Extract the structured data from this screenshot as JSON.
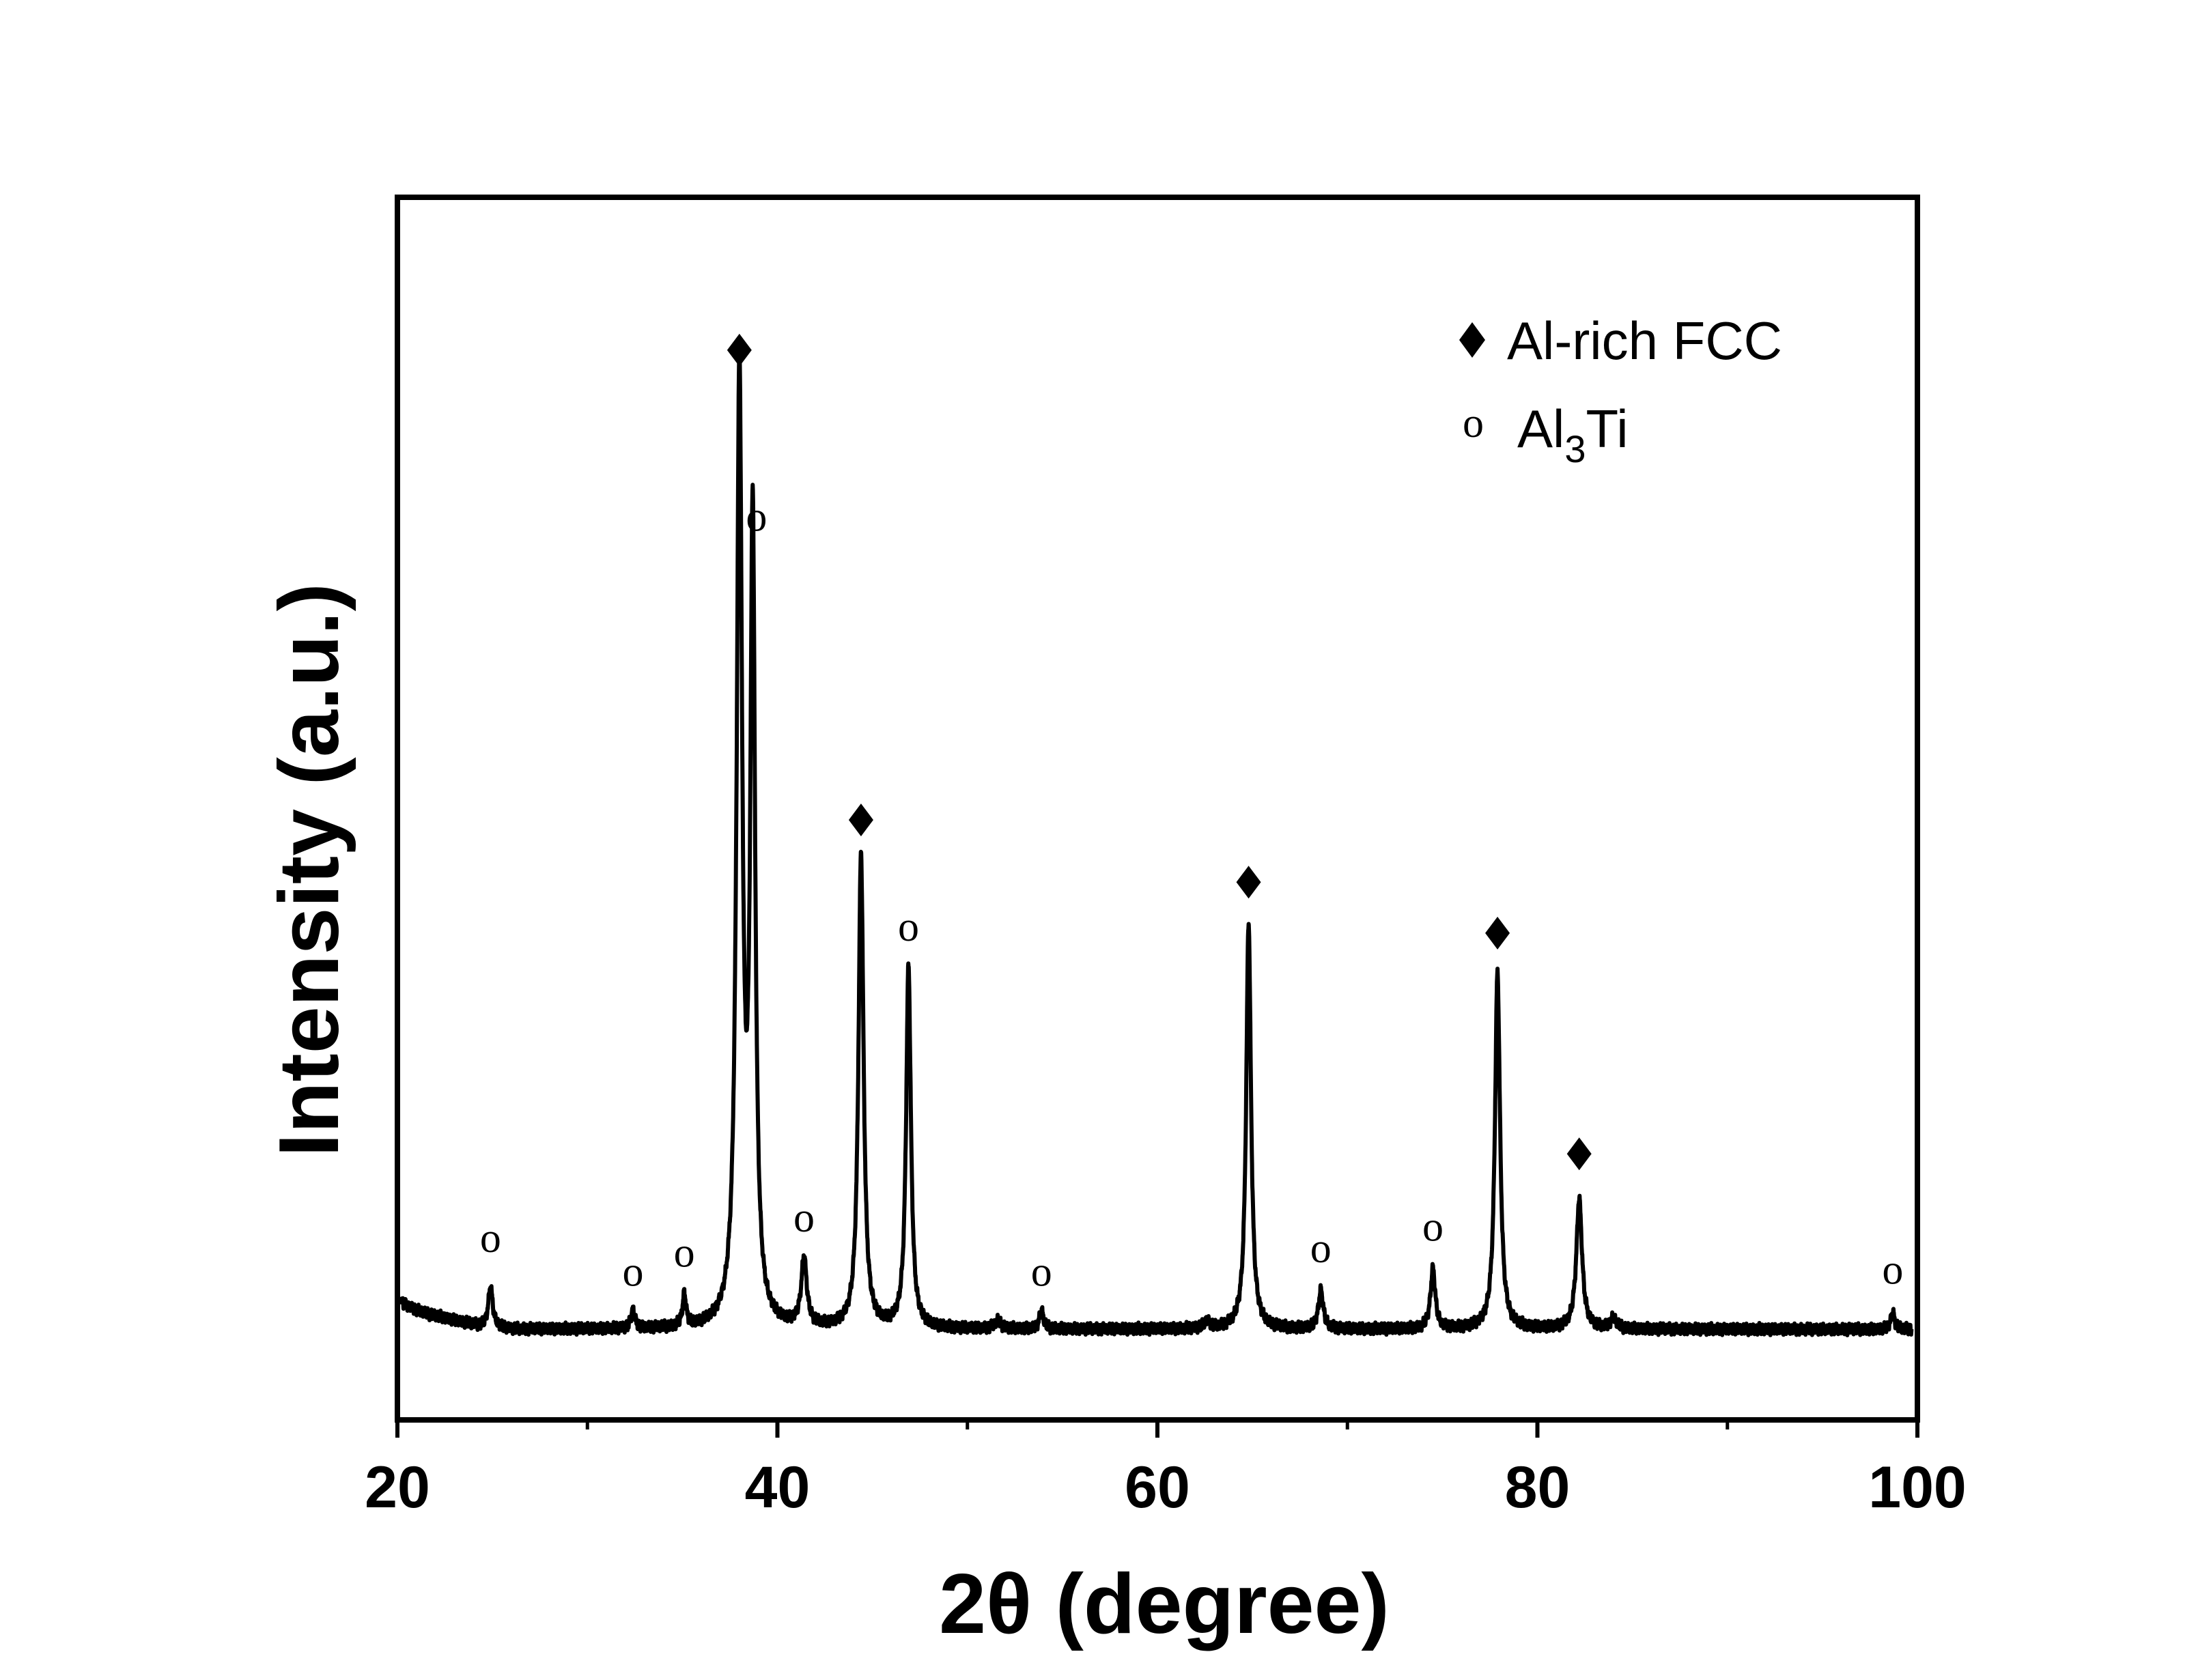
{
  "chart_data": {
    "type": "line",
    "xlabel": "2θ (degree)",
    "ylabel": "Intensity (a.u.)",
    "xlim": [
      20,
      100
    ],
    "ylim": [
      -8,
      100
    ],
    "x_ticks": [
      20,
      40,
      60,
      80,
      100
    ],
    "x_minor_ticks": [
      30,
      50,
      70,
      90
    ],
    "y_ticks_shown": false,
    "grid": false,
    "legend_position": "top-right",
    "legend": [
      {
        "symbol": "diamond",
        "label_main": "Al-rich FCC",
        "label_sub": ""
      },
      {
        "symbol": "circle-o",
        "label_main": "Al",
        "label_sub": "3",
        "label_tail": "Ti"
      }
    ],
    "baseline": 0,
    "low_angle_rise": [
      [
        20.2,
        2.4
      ],
      [
        20.5,
        2.1
      ],
      [
        21.0,
        1.7
      ],
      [
        21.5,
        1.4
      ],
      [
        22.0,
        1.2
      ],
      [
        22.5,
        1.0
      ],
      [
        23.0,
        0.8
      ],
      [
        23.5,
        0.6
      ],
      [
        24.0,
        0.4
      ],
      [
        24.5,
        0.2
      ],
      [
        25.5,
        0.1
      ],
      [
        26.0,
        0.0
      ]
    ],
    "peaks": [
      {
        "x": 24.9,
        "y": 3.6,
        "w": 0.14,
        "phase": "Al3Ti"
      },
      {
        "x": 32.4,
        "y": 1.6,
        "w": 0.12,
        "phase": "Al3Ti"
      },
      {
        "x": 35.1,
        "y": 2.8,
        "w": 0.11,
        "phase": "Al3Ti"
      },
      {
        "x": 38.0,
        "y": 83.5,
        "w": 0.17,
        "phase": "Al-rich FCC"
      },
      {
        "x": 38.7,
        "y": 70.0,
        "w": 0.15,
        "phase": "Al3Ti"
      },
      {
        "x": 41.4,
        "y": 6.0,
        "w": 0.17,
        "phase": "Al3Ti"
      },
      {
        "x": 44.4,
        "y": 42.0,
        "w": 0.16,
        "phase": "Al-rich FCC"
      },
      {
        "x": 46.9,
        "y": 32.0,
        "w": 0.15,
        "phase": "Al3Ti"
      },
      {
        "x": 51.6,
        "y": 0.7,
        "w": 0.2,
        "phase": ""
      },
      {
        "x": 53.9,
        "y": 1.6,
        "w": 0.13,
        "phase": "Al3Ti"
      },
      {
        "x": 62.6,
        "y": 0.6,
        "w": 0.2,
        "phase": ""
      },
      {
        "x": 64.8,
        "y": 36.0,
        "w": 0.15,
        "phase": "Al-rich FCC"
      },
      {
        "x": 68.6,
        "y": 3.4,
        "w": 0.15,
        "phase": "Al3Ti"
      },
      {
        "x": 74.5,
        "y": 5.3,
        "w": 0.15,
        "phase": "Al3Ti"
      },
      {
        "x": 77.9,
        "y": 31.5,
        "w": 0.16,
        "phase": "Al-rich FCC"
      },
      {
        "x": 82.2,
        "y": 11.5,
        "w": 0.18,
        "phase": "Al-rich FCC"
      },
      {
        "x": 84.0,
        "y": 0.9,
        "w": 0.2,
        "phase": ""
      },
      {
        "x": 98.7,
        "y": 1.5,
        "w": 0.12,
        "phase": "Al3Ti"
      }
    ],
    "peak_markers": [
      {
        "x": 38.0,
        "y": 86.5,
        "symbol": "diamond"
      },
      {
        "x": 38.9,
        "y": 71.5,
        "symbol": "circle-o"
      },
      {
        "x": 44.4,
        "y": 45.0,
        "symbol": "diamond"
      },
      {
        "x": 46.9,
        "y": 35.3,
        "symbol": "circle-o"
      },
      {
        "x": 64.8,
        "y": 39.5,
        "symbol": "diamond"
      },
      {
        "x": 77.9,
        "y": 35.0,
        "symbol": "diamond"
      },
      {
        "x": 82.2,
        "y": 15.5,
        "symbol": "diamond"
      },
      {
        "x": 24.9,
        "y": 7.8,
        "symbol": "circle-o"
      },
      {
        "x": 32.4,
        "y": 4.8,
        "symbol": "circle-o"
      },
      {
        "x": 35.1,
        "y": 6.5,
        "symbol": "circle-o"
      },
      {
        "x": 41.4,
        "y": 9.6,
        "symbol": "circle-o"
      },
      {
        "x": 53.9,
        "y": 4.8,
        "symbol": "circle-o"
      },
      {
        "x": 68.6,
        "y": 6.9,
        "symbol": "circle-o"
      },
      {
        "x": 74.5,
        "y": 8.8,
        "symbol": "circle-o"
      },
      {
        "x": 98.7,
        "y": 5.0,
        "symbol": "circle-o"
      }
    ]
  },
  "colors": {
    "line": "#000000",
    "axis": "#000000",
    "background": "#ffffff"
  }
}
